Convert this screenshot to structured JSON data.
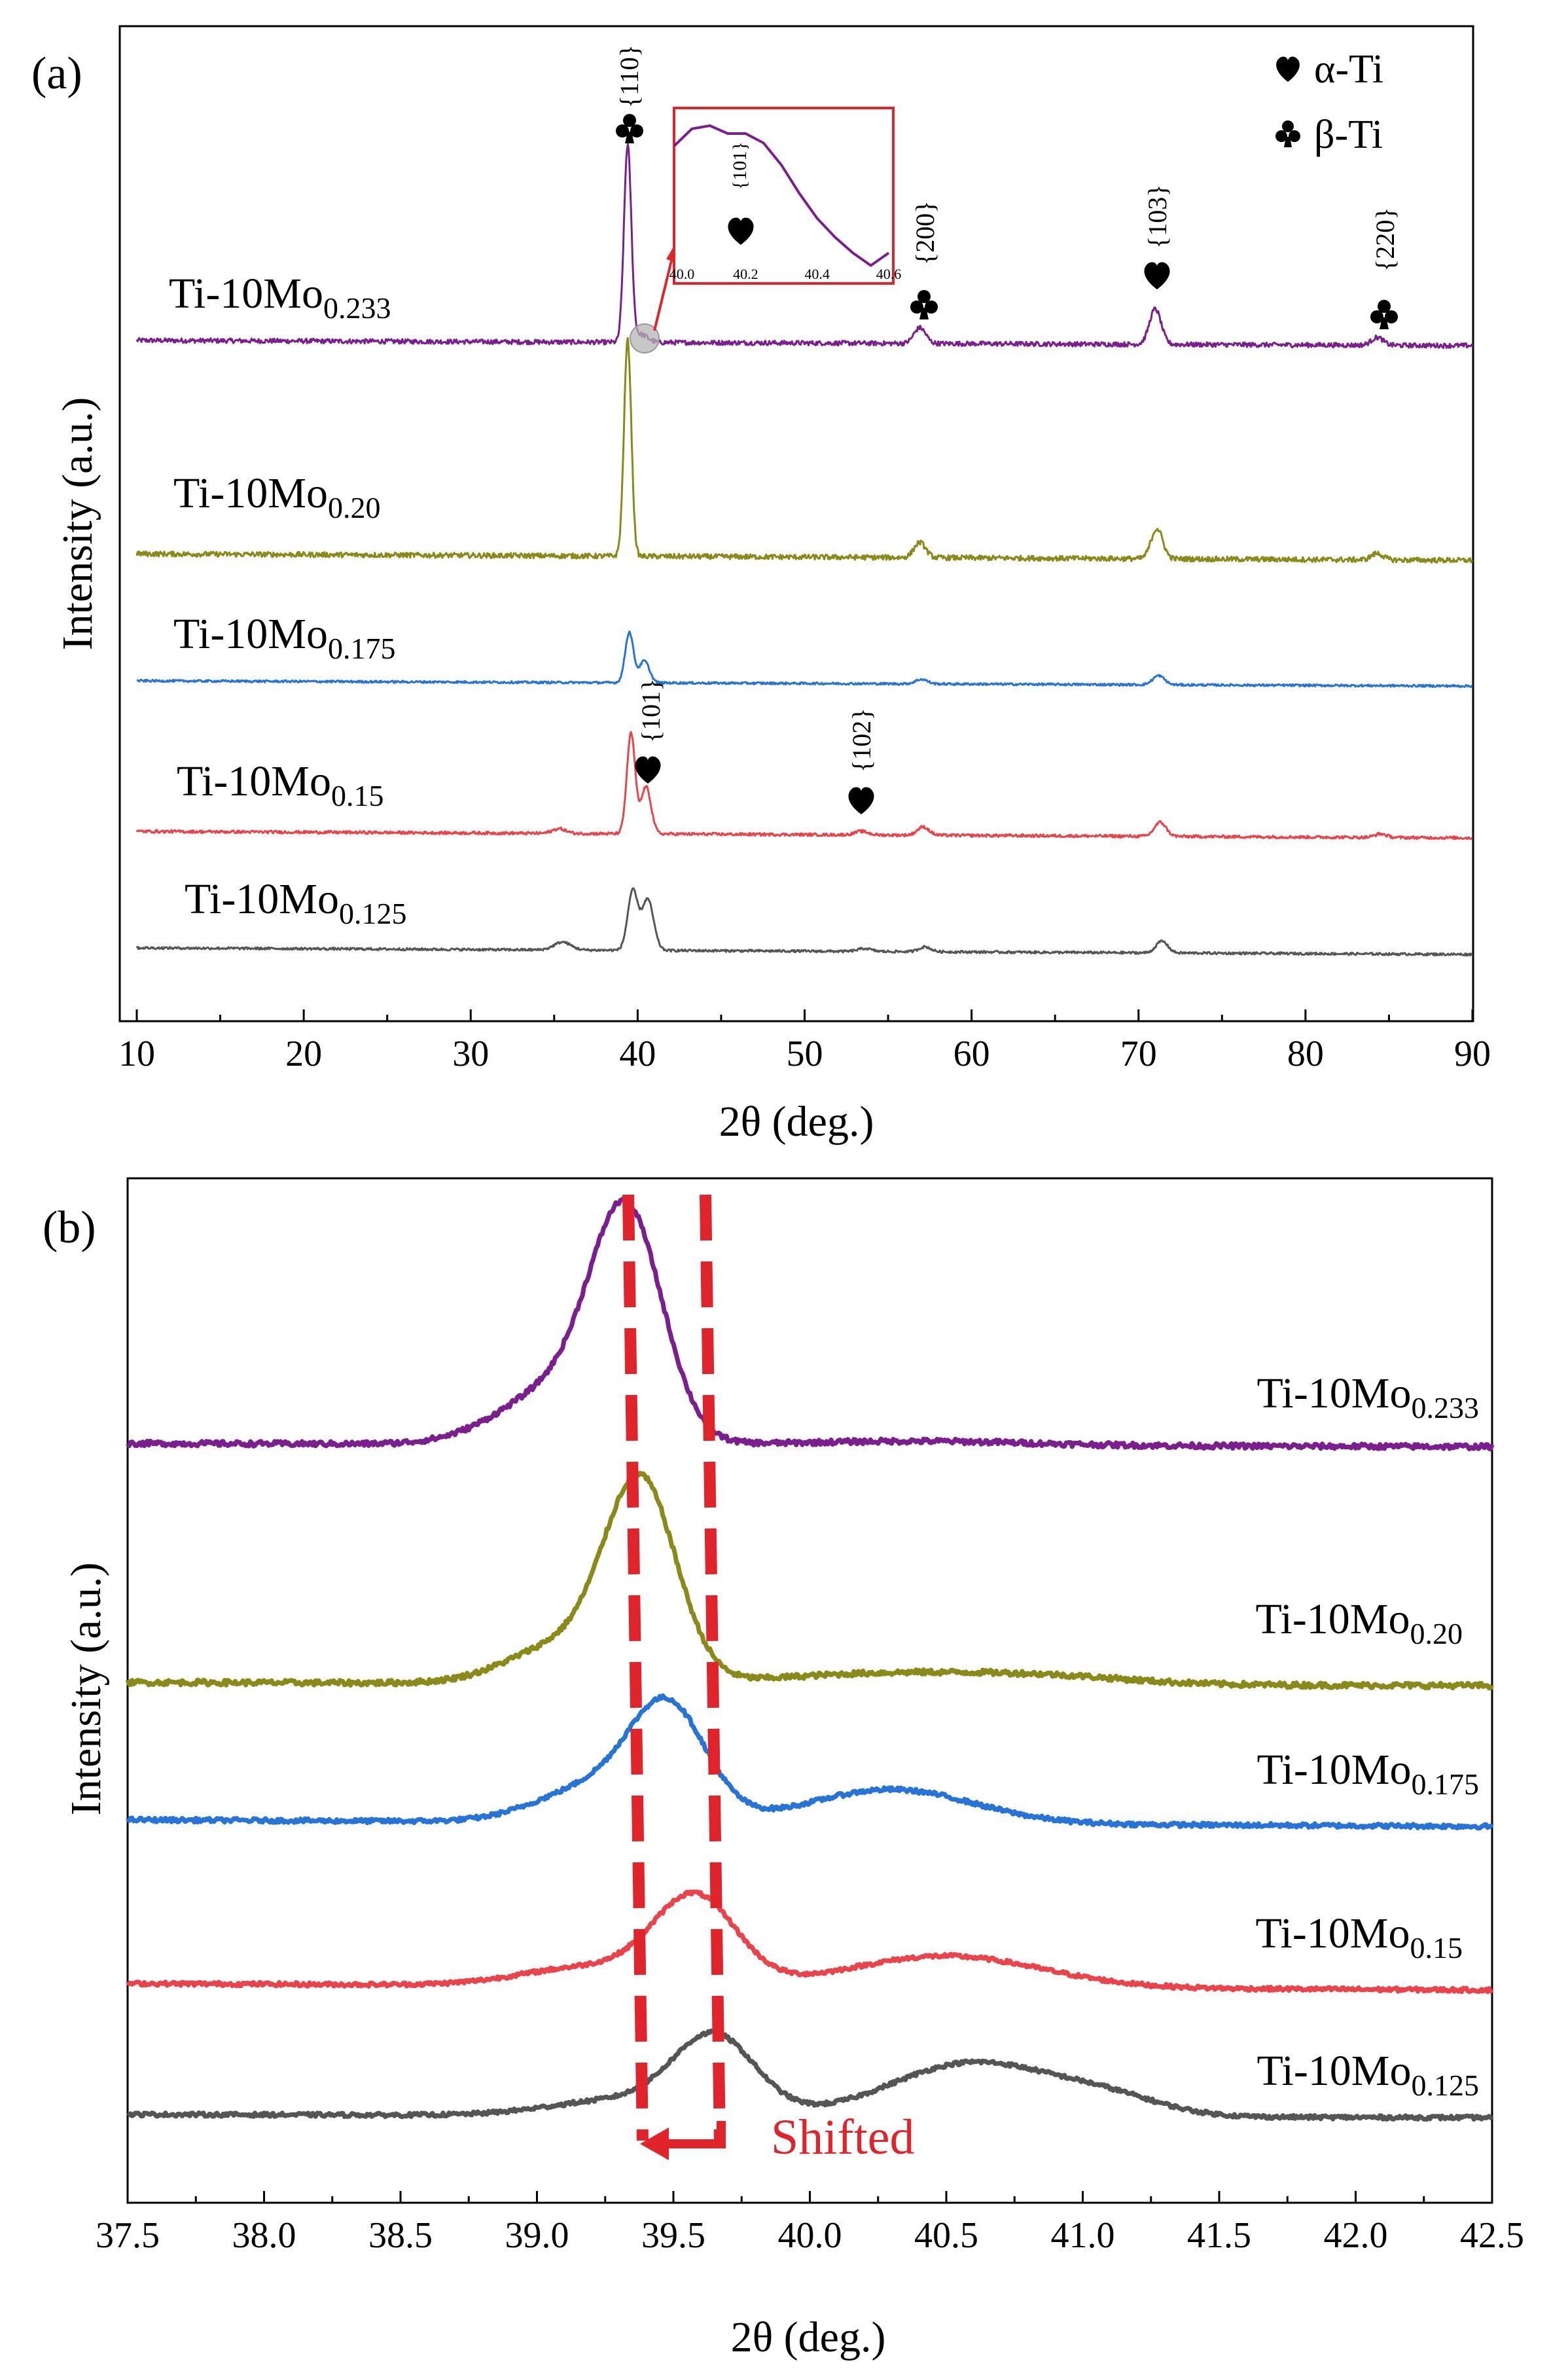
{
  "chart_data": [
    {
      "panel": "(a)",
      "type": "line",
      "xlabel": "2θ (deg.)",
      "ylabel": "Intensity (a.u.)",
      "xlim": [
        10,
        90
      ],
      "x_ticks": [
        "10",
        "20",
        "30",
        "40",
        "50",
        "60",
        "70",
        "80",
        "90"
      ],
      "grid": false,
      "legend": {
        "position": "top-right",
        "entries": [
          {
            "symbol": "heart",
            "label": "α-Ti"
          },
          {
            "symbol": "club",
            "label": "β-Ti"
          }
        ]
      },
      "series": [
        {
          "base": "Ti-10Mo",
          "sub": "0.233",
          "color": "#7b1f8f",
          "peaks": [
            [
              39.4,
              1.0,
              0.22
            ],
            [
              40.2,
              0.04,
              0.4
            ],
            [
              56.9,
              0.08,
              0.35
            ],
            [
              71.0,
              0.18,
              0.35
            ],
            [
              84.3,
              0.04,
              0.35
            ]
          ]
        },
        {
          "base": "Ti-10Mo",
          "sub": "0.20",
          "color": "#8a8a1a",
          "peaks": [
            [
              39.4,
              1.0,
              0.22
            ],
            [
              56.9,
              0.07,
              0.35
            ],
            [
              71.1,
              0.14,
              0.35
            ],
            [
              84.3,
              0.03,
              0.35
            ]
          ]
        },
        {
          "base": "Ti-10Mo",
          "sub": "0.175",
          "color": "#2774d6",
          "peaks": [
            [
              39.5,
              0.55,
              0.25
            ],
            [
              40.4,
              0.24,
              0.3
            ],
            [
              57.0,
              0.05,
              0.35
            ],
            [
              71.2,
              0.1,
              0.35
            ]
          ]
        },
        {
          "base": "Ti-10Mo",
          "sub": "0.15",
          "color": "#e9434b",
          "peaks": [
            [
              35.3,
              0.04,
              0.4
            ],
            [
              39.6,
              0.85,
              0.25
            ],
            [
              40.5,
              0.4,
              0.3
            ],
            [
              53.4,
              0.03,
              0.4
            ],
            [
              57.1,
              0.07,
              0.35
            ],
            [
              71.3,
              0.12,
              0.35
            ],
            [
              84.5,
              0.03,
              0.35
            ]
          ]
        },
        {
          "base": "Ti-10Mo",
          "sub": "0.125",
          "color": "#555555",
          "peaks": [
            [
              35.5,
              0.08,
              0.5
            ],
            [
              39.7,
              0.6,
              0.3
            ],
            [
              40.6,
              0.52,
              0.35
            ],
            [
              53.6,
              0.03,
              0.4
            ],
            [
              57.2,
              0.05,
              0.35
            ],
            [
              71.4,
              0.12,
              0.35
            ]
          ]
        }
      ],
      "annotations": {
        "beta_110": {
          "hkl": "{110}",
          "phase": "club",
          "x": 39.4
        },
        "beta_200": {
          "hkl": "{200}",
          "phase": "club",
          "x": 56.9
        },
        "alpha_103": {
          "hkl": "{103}",
          "phase": "heart",
          "x": 71.0
        },
        "beta_220": {
          "hkl": "{220}",
          "phase": "club",
          "x": 84.3
        },
        "alpha_101": {
          "hkl": "{101}",
          "phase": "heart",
          "x": 40.5
        },
        "alpha_102": {
          "hkl": "{102}",
          "phase": "heart",
          "x": 53.4
        }
      },
      "inset": {
        "xlim": [
          40.0,
          40.6
        ],
        "x_ticks": [
          "40.0",
          "40.2",
          "40.4",
          "40.6"
        ],
        "hkl": "{101}",
        "phase": "heart",
        "curve_x": [
          40.0,
          40.05,
          40.1,
          40.15,
          40.2,
          40.25,
          40.3,
          40.35,
          40.4,
          40.45,
          40.5,
          40.55,
          40.6
        ],
        "curve_y": [
          0.82,
          0.93,
          0.95,
          0.9,
          0.9,
          0.84,
          0.7,
          0.52,
          0.36,
          0.24,
          0.14,
          0.06,
          0.14
        ]
      }
    },
    {
      "panel": "(b)",
      "type": "line",
      "xlabel": "2θ (deg.)",
      "ylabel": "Intensity (a.u.)",
      "xlim": [
        37.5,
        42.5
      ],
      "x_ticks": [
        "37.5",
        "38.0",
        "38.5",
        "39.0",
        "39.5",
        "40.0",
        "40.5",
        "41.0",
        "41.5",
        "42.0",
        "42.5"
      ],
      "grid": false,
      "series": [
        {
          "base": "Ti-10Mo",
          "sub": "0.233",
          "color": "#7b1f8f",
          "peaks": [
            [
              39.33,
              1.0,
              0.13
            ],
            [
              39.1,
              0.28,
              0.22
            ],
            [
              40.4,
              0.02,
              0.4
            ]
          ]
        },
        {
          "base": "Ti-10Mo",
          "sub": "0.20",
          "color": "#8a8a1a",
          "peaks": [
            [
              39.38,
              0.9,
              0.13
            ],
            [
              39.1,
              0.18,
              0.2
            ],
            [
              40.3,
              0.05,
              0.4
            ],
            [
              40.9,
              0.03,
              0.3
            ]
          ]
        },
        {
          "base": "Ti-10Mo",
          "sub": "0.175",
          "color": "#2774d6",
          "peaks": [
            [
              39.48,
              0.65,
              0.14
            ],
            [
              39.2,
              0.2,
              0.2
            ],
            [
              40.3,
              0.2,
              0.3
            ]
          ]
        },
        {
          "base": "Ti-10Mo",
          "sub": "0.15",
          "color": "#e9434b",
          "peaks": [
            [
              39.58,
              0.55,
              0.15
            ],
            [
              39.2,
              0.12,
              0.25
            ],
            [
              40.5,
              0.2,
              0.35
            ]
          ]
        },
        {
          "base": "Ti-10Mo",
          "sub": "0.125",
          "color": "#555555",
          "peaks": [
            [
              39.65,
              0.5,
              0.15
            ],
            [
              39.3,
              0.1,
              0.25
            ],
            [
              40.6,
              0.35,
              0.3
            ],
            [
              41.1,
              0.1,
              0.2
            ]
          ]
        }
      ],
      "shift_annotation": {
        "label": "Shifted",
        "from_x": 39.65,
        "to_x": 39.38,
        "color": "#e0242b"
      }
    }
  ]
}
